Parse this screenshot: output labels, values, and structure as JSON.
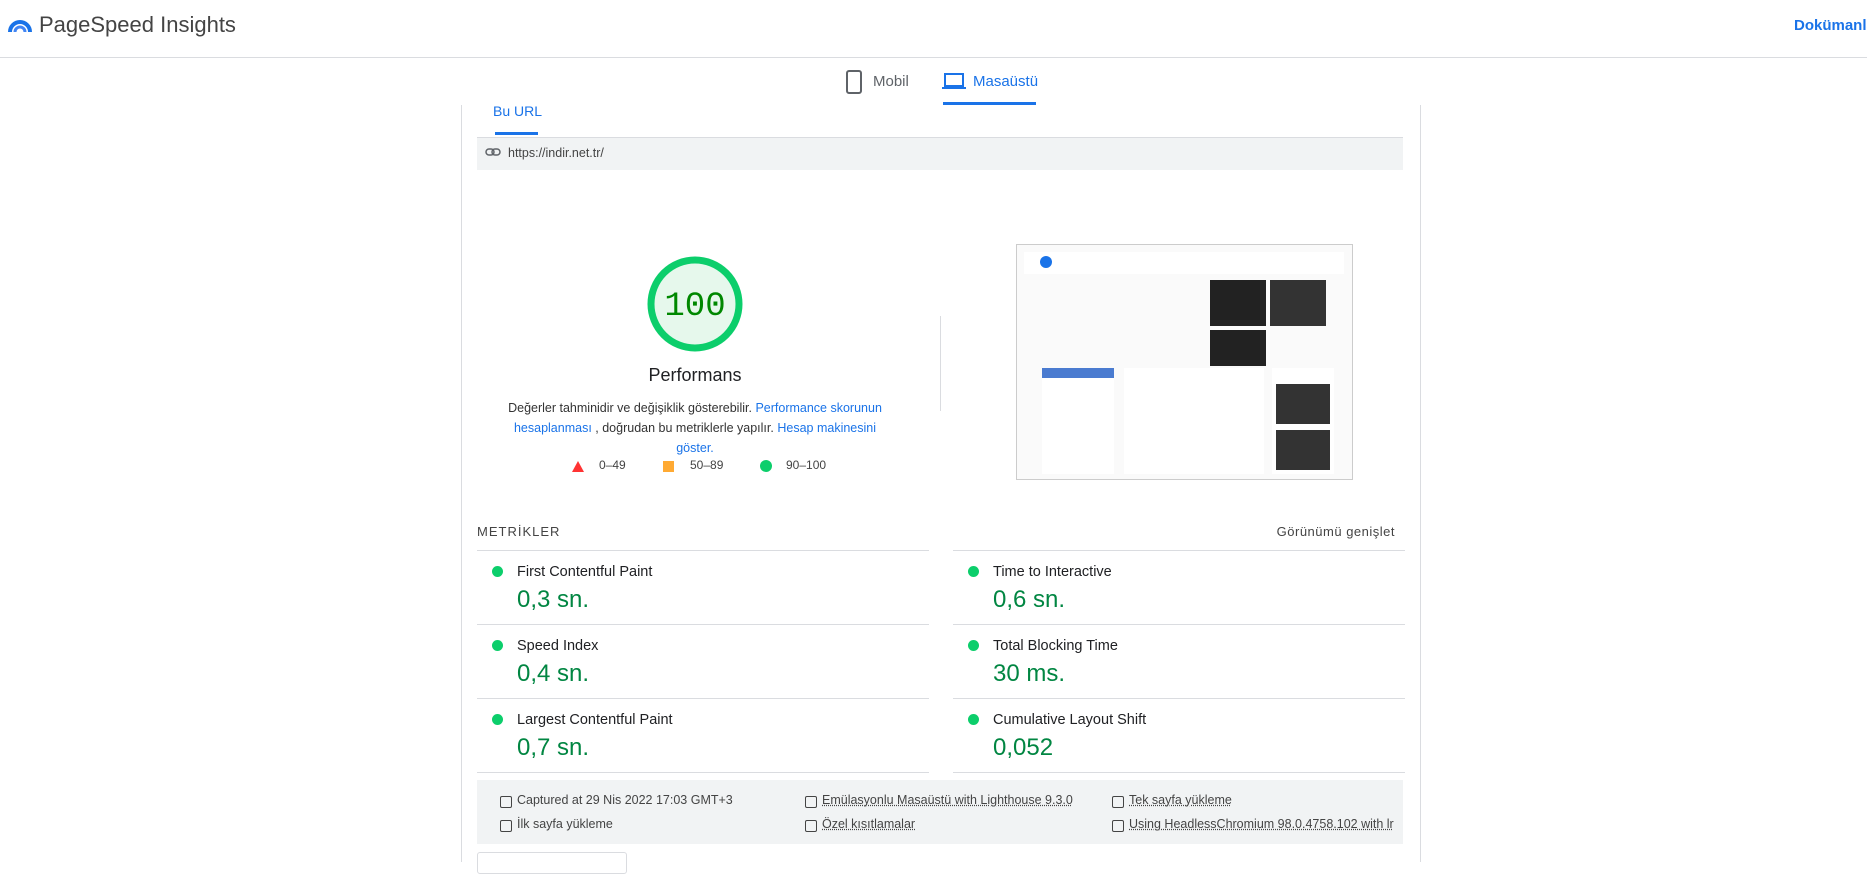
{
  "header": {
    "brand": "PageSpeed Insights",
    "docs": "Dokümanla"
  },
  "tabs": [
    "Mobil",
    "Masaüstü"
  ],
  "subtab": "Bu URL",
  "url": "https://indir.net.tr/",
  "score": {
    "value": 100,
    "label": "Performans"
  },
  "description": {
    "text1": "Değerler tahminidir ve değişiklik gösterebilir.",
    "link1": "Performance skorunun hesaplanması",
    "text2": ", doğrudan bu metriklerle yapılır.",
    "link2": "Hesap makinesini göster."
  },
  "legend": [
    "0–49",
    "50–89",
    "90–100"
  ],
  "metrics_heading": "METRİKLER",
  "expand": "Görünümü genişlet",
  "metrics": [
    {
      "name": "First Contentful Paint",
      "value": "0,3 sn."
    },
    {
      "name": "Time to Interactive",
      "value": "0,6 sn."
    },
    {
      "name": "Speed Index",
      "value": "0,4 sn."
    },
    {
      "name": "Total Blocking Time",
      "value": "30 ms."
    },
    {
      "name": "Largest Contentful Paint",
      "value": "0,7 sn."
    },
    {
      "name": "Cumulative Layout Shift",
      "value": "0,052"
    }
  ],
  "footer": [
    "Captured at 29 Nis 2022 17:03 GMT+3",
    "Emülasyonlu Masaüstü with Lighthouse 9.3.0",
    "Tek sayfa yükleme",
    "İlk sayfa yükleme",
    "Özel kısıtlamalar",
    "Using HeadlessChromium 98.0.4758.102 with lr"
  ]
}
